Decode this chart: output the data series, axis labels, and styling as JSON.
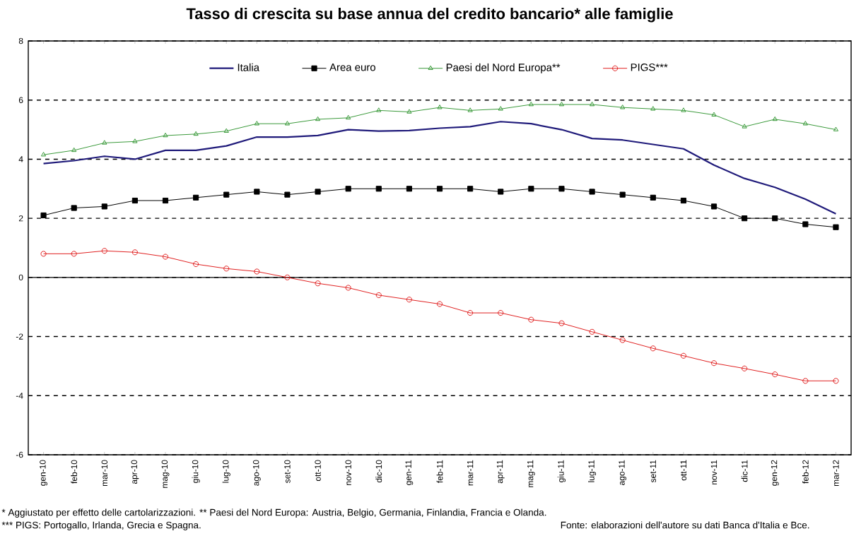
{
  "chart_data": {
    "type": "line",
    "title": "Tasso di crescita su base annua del credito bancario* alle famiglie",
    "categories": [
      "gen-10",
      "feb-10",
      "mar-10",
      "apr-10",
      "mag-10",
      "giu-10",
      "lug-10",
      "ago-10",
      "set-10",
      "ott-10",
      "nov-10",
      "dic-10",
      "gen-11",
      "feb-11",
      "mar-11",
      "apr-11",
      "mag-11",
      "giu-11",
      "lug-11",
      "ago-11",
      "set-11",
      "ott-11",
      "nov-11",
      "dic-11",
      "gen-12",
      "feb-12",
      "mar-12"
    ],
    "series": [
      {
        "name": "Italia",
        "color": "#1f1a7a",
        "marker": "none",
        "values": [
          3.85,
          3.95,
          4.1,
          4.0,
          4.3,
          4.3,
          4.45,
          4.75,
          4.75,
          4.8,
          5.0,
          4.95,
          4.97,
          5.05,
          5.1,
          5.27,
          5.2,
          5.0,
          4.7,
          4.65,
          4.5,
          4.35,
          3.8,
          3.35,
          3.05,
          2.65,
          2.15
        ]
      },
      {
        "name": "Area euro",
        "color": "#000000",
        "marker": "square",
        "values": [
          2.1,
          2.35,
          2.4,
          2.6,
          2.6,
          2.7,
          2.8,
          2.9,
          2.8,
          2.9,
          3.0,
          3.0,
          3.0,
          3.0,
          3.0,
          2.9,
          3.0,
          3.0,
          2.9,
          2.8,
          2.7,
          2.6,
          2.4,
          2.0,
          2.0,
          1.8,
          1.7
        ]
      },
      {
        "name": "Paesi del Nord Europa**",
        "color": "#3a9a3a",
        "marker": "triangle",
        "values": [
          4.15,
          4.3,
          4.55,
          4.6,
          4.8,
          4.85,
          4.95,
          5.2,
          5.2,
          5.35,
          5.4,
          5.65,
          5.6,
          5.75,
          5.65,
          5.7,
          5.85,
          5.85,
          5.85,
          5.75,
          5.7,
          5.65,
          5.5,
          5.1,
          5.35,
          5.2,
          5.0
        ]
      },
      {
        "name": "PIGS***",
        "color": "#e02020",
        "marker": "circle",
        "values": [
          0.8,
          0.8,
          0.9,
          0.85,
          0.7,
          0.45,
          0.3,
          0.2,
          0.0,
          -0.2,
          -0.35,
          -0.6,
          -0.75,
          -0.9,
          -1.2,
          -1.2,
          -1.43,
          -1.55,
          -1.84,
          -2.12,
          -2.4,
          -2.65,
          -2.9,
          -3.08,
          -3.28,
          -3.5,
          -3.5
        ]
      }
    ],
    "ylim": [
      -6,
      8
    ],
    "yticks": [
      -6,
      -4,
      -2,
      0,
      2,
      4,
      6,
      8
    ],
    "grid": "y",
    "legend": "top",
    "annotations": [
      "* Aggiustato per effetto delle cartolarizzazioni. ** Paesi del Nord Europa: Austria, Belgio, Germania, Finlandia, Francia e Olanda.",
      "*** PIGS: Portogallo, Irlanda, Grecia e Spagna.",
      "Fonte: elaborazioni dell'autore su dati Banca d'Italia e Bce."
    ]
  }
}
